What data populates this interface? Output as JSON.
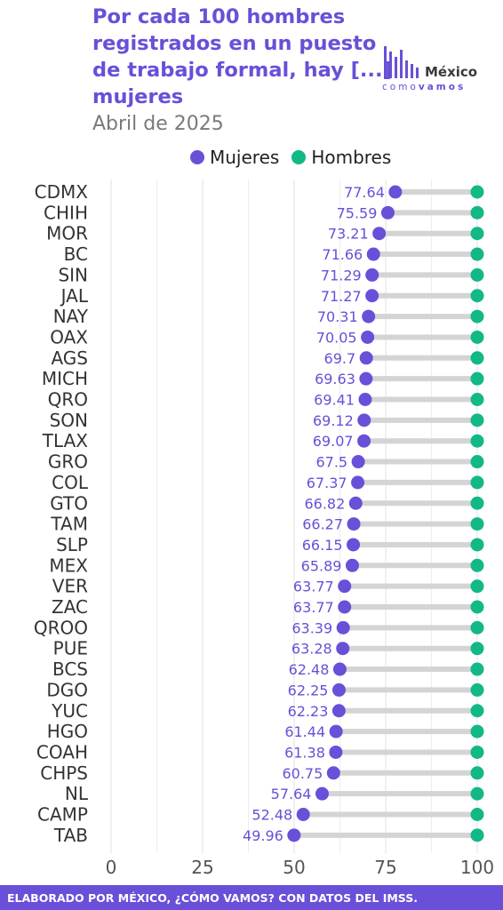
{
  "header": {
    "title": "Por cada 100 hombres registrados en un puesto de trabajo formal, hay [...] mujeres",
    "subtitle": "Abril de 2025"
  },
  "logo": {
    "name": "México",
    "tagline_part1": "como",
    "tagline_part2": "vamos"
  },
  "footer": {
    "text": "ELABORADO POR MÉXICO, ¿CÓMO VAMOS? CON DATOS DEL IMSS."
  },
  "colors": {
    "mujeres": "#6a4fd8",
    "hombres": "#12b886",
    "connector": "#d4d4d4",
    "grid": "#e6e6e6",
    "footer_bg": "#6a4fd8"
  },
  "chart_data": {
    "type": "dumbbell",
    "categories": [
      "CDMX",
      "CHIH",
      "MOR",
      "BC",
      "SIN",
      "JAL",
      "NAY",
      "OAX",
      "AGS",
      "MICH",
      "QRO",
      "SON",
      "TLAX",
      "GRO",
      "COL",
      "GTO",
      "TAM",
      "SLP",
      "MEX",
      "VER",
      "ZAC",
      "QROO",
      "PUE",
      "BCS",
      "DGO",
      "YUC",
      "HGO",
      "COAH",
      "CHPS",
      "NL",
      "CAMP",
      "TAB"
    ],
    "series": [
      {
        "name": "Mujeres",
        "values": [
          77.64,
          75.59,
          73.21,
          71.66,
          71.29,
          71.27,
          70.31,
          70.05,
          69.7,
          69.63,
          69.41,
          69.12,
          69.07,
          67.5,
          67.37,
          66.82,
          66.27,
          66.15,
          65.89,
          63.77,
          63.77,
          63.39,
          63.28,
          62.48,
          62.25,
          62.23,
          61.44,
          61.38,
          60.75,
          57.64,
          52.48,
          49.96
        ]
      },
      {
        "name": "Hombres",
        "values": [
          100,
          100,
          100,
          100,
          100,
          100,
          100,
          100,
          100,
          100,
          100,
          100,
          100,
          100,
          100,
          100,
          100,
          100,
          100,
          100,
          100,
          100,
          100,
          100,
          100,
          100,
          100,
          100,
          100,
          100,
          100,
          100
        ]
      }
    ],
    "xlim": [
      0,
      100
    ],
    "x_ticks": [
      "0",
      "25",
      "50",
      "75",
      "100"
    ],
    "legend": "top",
    "grid": true
  }
}
